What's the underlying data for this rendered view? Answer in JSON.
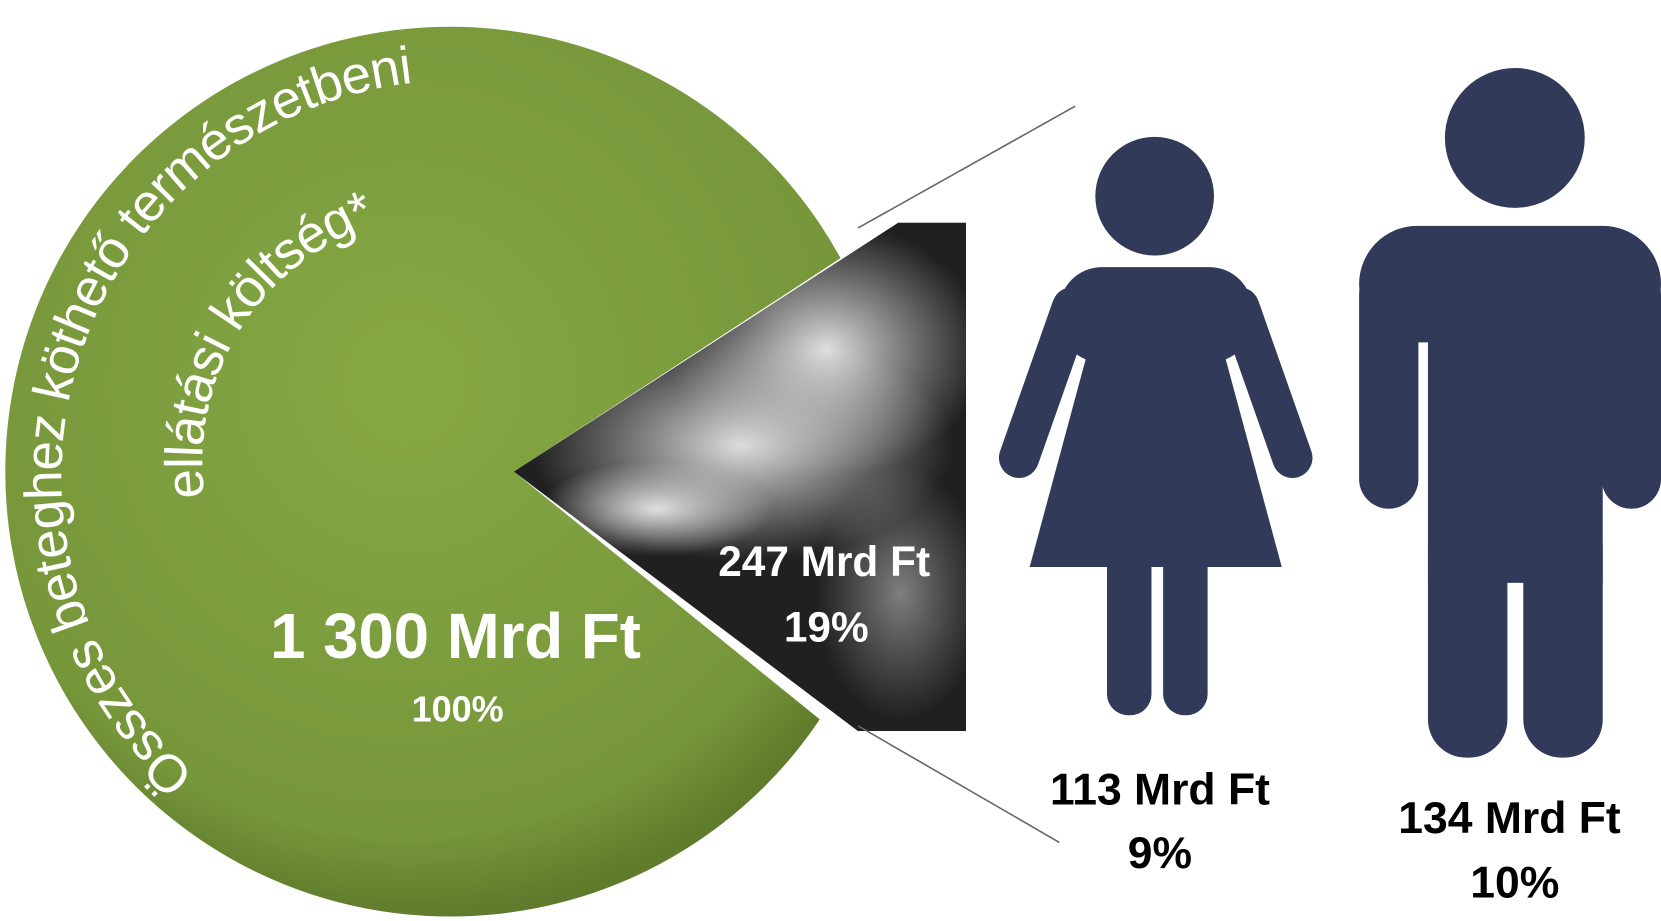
{
  "pie": {
    "label_line_1": "Összes beteghez köthető természetbeni",
    "label_line_2": "ellátási költség*",
    "total": "1 300 Mrd Ft",
    "total_share": "100%"
  },
  "slice": {
    "amount": "247 Mrd Ft",
    "share": "19%"
  },
  "women": {
    "amount": "113 Mrd Ft",
    "share": "9%"
  },
  "men": {
    "amount": "134 Mrd Ft",
    "share": "10%"
  }
}
